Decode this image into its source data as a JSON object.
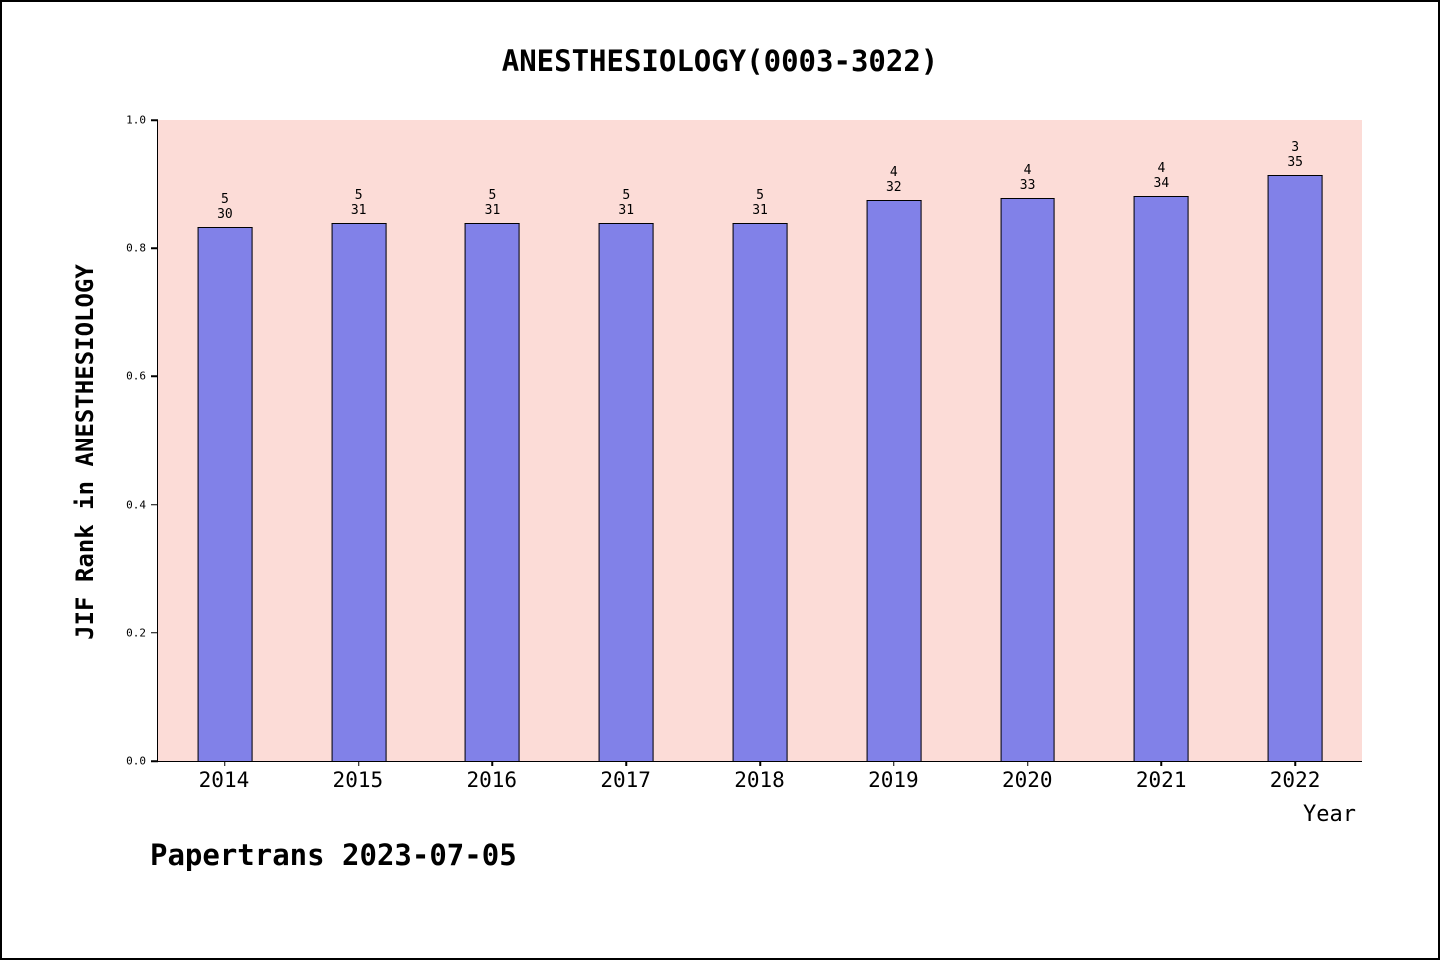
{
  "footer": "Papertrans 2023-07-05",
  "chart_data": {
    "type": "bar",
    "title": "ANESTHESIOLOGY(0003-3022)",
    "xlabel": "Year",
    "ylabel": "JIF Rank in ANESTHESIOLOGY",
    "ylim": [
      0.0,
      1.0
    ],
    "yticks": [
      0.0,
      0.2,
      0.4,
      0.6,
      0.8,
      1.0
    ],
    "grid": false,
    "legend": false,
    "categories": [
      "2014",
      "2015",
      "2016",
      "2017",
      "2018",
      "2019",
      "2020",
      "2021",
      "2022"
    ],
    "values": [
      0.833,
      0.839,
      0.839,
      0.839,
      0.839,
      0.875,
      0.879,
      0.882,
      0.914
    ],
    "bar_labels": [
      {
        "rank": "5",
        "total": "30"
      },
      {
        "rank": "5",
        "total": "31"
      },
      {
        "rank": "5",
        "total": "31"
      },
      {
        "rank": "5",
        "total": "31"
      },
      {
        "rank": "5",
        "total": "31"
      },
      {
        "rank": "4",
        "total": "32"
      },
      {
        "rank": "4",
        "total": "33"
      },
      {
        "rank": "4",
        "total": "34"
      },
      {
        "rank": "3",
        "total": "35"
      }
    ],
    "colors": {
      "bar_fill": "#8181e8",
      "bar_edge": "#000000",
      "plot_background": "#fcdcd7",
      "page_background": "#ffffff",
      "text": "#000000"
    }
  }
}
